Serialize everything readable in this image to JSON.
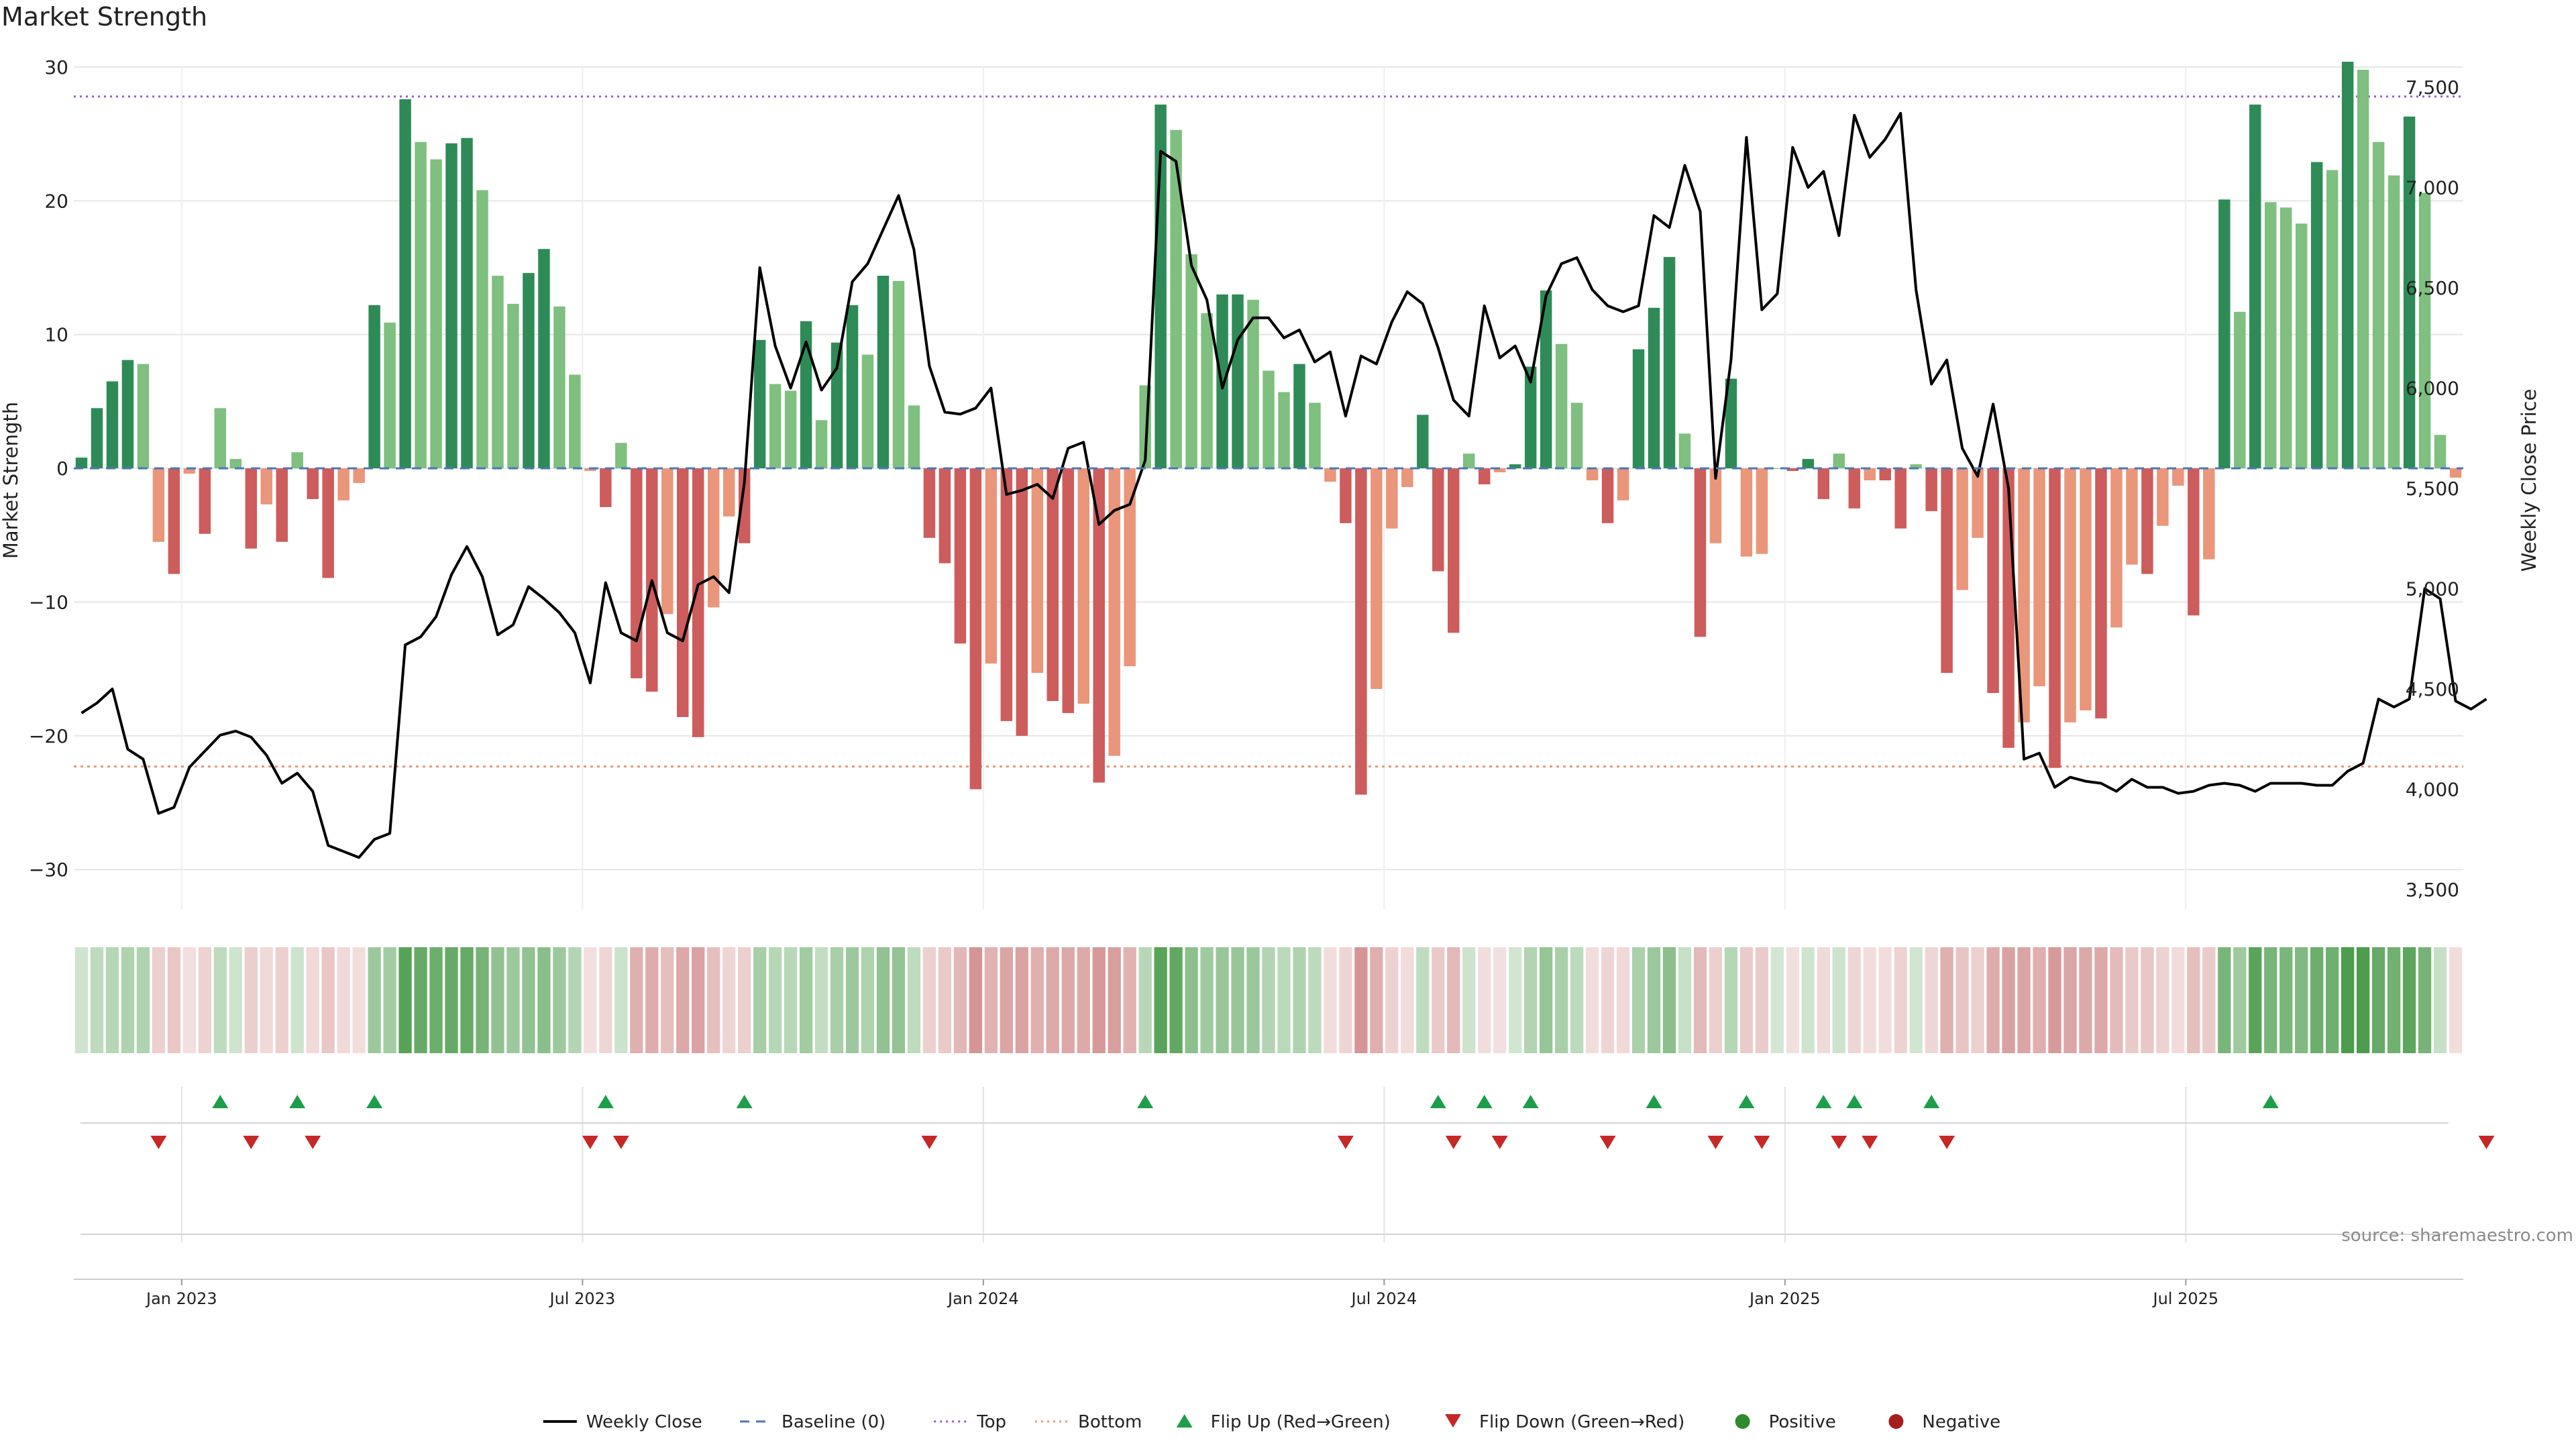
{
  "title": "Market Strength",
  "source": "source: sharemaestro.com",
  "chart_data": {
    "type": "bar",
    "title": "Market Strength",
    "ylabel_left": "Market Strength",
    "ylabel_right": "Weekly Close Price",
    "ylim_left": [
      -33,
      30
    ],
    "ylim_right": [
      3400,
      7600
    ],
    "yticks_left": [
      "30",
      "20",
      "10",
      "0",
      "−10",
      "−20",
      "−30"
    ],
    "yticks_left_values": [
      30,
      20,
      10,
      0,
      -10,
      -20,
      -30
    ],
    "yticks_right": [
      "7,500",
      "7,000",
      "6,500",
      "6,000",
      "5,500",
      "5,000",
      "4,500",
      "4,000",
      "3,500"
    ],
    "yticks_right_values": [
      7500,
      7000,
      6500,
      6000,
      5500,
      5000,
      4500,
      4000,
      3500
    ],
    "xticks": [
      "Jan 2023",
      "Jul 2023",
      "Jan 2024",
      "Jul 2024",
      "Jan 2025",
      "Jul 2025"
    ],
    "xtick_weeks": [
      7,
      33,
      59,
      85,
      111,
      137
    ],
    "top_line": 27.8,
    "bottom_line": -22.3,
    "colors": {
      "green_strong": "#2e8b57",
      "green_light": "#7fbf7f",
      "red_strong": "#cd5c5c",
      "red_light": "#e9967a",
      "close_line": "#000000",
      "baseline": "#4a78b5",
      "top": "#9b59d0",
      "bottom": "#e9967a",
      "flip_up": "#1e9e4a",
      "flip_down": "#c62828",
      "positive": "#2e8b2e",
      "negative": "#a61e1e"
    },
    "series": [
      {
        "name": "Market Strength",
        "values": [
          0.8,
          4.5,
          6.5,
          8.1,
          7.8,
          -5.5,
          -7.9,
          -0.4,
          -4.9,
          4.5,
          0.7,
          -6.0,
          -2.7,
          -5.5,
          1.2,
          -2.3,
          -8.2,
          -2.4,
          -1.1,
          12.2,
          10.9,
          27.6,
          24.4,
          23.1,
          24.3,
          24.7,
          20.8,
          14.4,
          12.3,
          14.6,
          16.4,
          12.1,
          7.0,
          -0.2,
          -2.9,
          1.9,
          -15.7,
          -16.7,
          -10.9,
          -18.6,
          -20.1,
          -10.4,
          -3.6,
          -5.6,
          9.6,
          6.3,
          5.8,
          11.0,
          3.6,
          9.4,
          12.2,
          8.5,
          14.4,
          14.0,
          4.7,
          -5.2,
          -7.1,
          -13.1,
          -24.0,
          -14.6,
          -18.9,
          -20.0,
          -15.3,
          -17.4,
          -18.3,
          -17.6,
          -23.5,
          -21.5,
          -14.8,
          6.2,
          27.2,
          25.3,
          16.0,
          11.6,
          13.0,
          13.0,
          12.6,
          7.3,
          5.7,
          7.8,
          4.9,
          -1.0,
          -4.1,
          -24.4,
          -16.5,
          -4.5,
          -1.4,
          4.0,
          -7.7,
          -12.3,
          1.1,
          -1.2,
          -0.3,
          0.3,
          7.6,
          13.3,
          9.3,
          4.9,
          -0.9,
          -4.1,
          -2.4,
          8.9,
          12.0,
          15.8,
          2.6,
          -12.6,
          -5.6,
          6.7,
          -6.6,
          -6.4,
          0.0,
          -0.2,
          0.7,
          -2.3,
          1.1,
          -3.0,
          -0.9,
          -0.9,
          -4.5,
          0.3,
          -3.2,
          -15.3,
          -9.1,
          -5.2,
          -16.8,
          -20.9,
          -19.0,
          -16.3,
          -22.4,
          -19.0,
          -18.1,
          -18.7,
          -11.9,
          -7.2,
          -7.9,
          -4.3,
          -1.3,
          -11.0,
          -6.8,
          20.1,
          11.7,
          27.2,
          19.9,
          19.5,
          18.3,
          22.9,
          22.3,
          30.4,
          29.8,
          24.4,
          21.9,
          26.3,
          20.6,
          2.5,
          -0.7
        ]
      },
      {
        "name": "Weekly Close",
        "values": [
          4380,
          4430,
          4500,
          4200,
          4150,
          3880,
          3910,
          4110,
          4190,
          4270,
          4290,
          4260,
          4170,
          4030,
          4080,
          3990,
          3720,
          3690,
          3660,
          3750,
          3780,
          4720,
          4760,
          4860,
          5070,
          5210,
          5060,
          4770,
          4820,
          5010,
          4950,
          4880,
          4780,
          4530,
          5030,
          4780,
          4740,
          5040,
          4780,
          4740,
          5020,
          5060,
          4980,
          5530,
          6600,
          6210,
          6000,
          6230,
          5990,
          6100,
          6530,
          6620,
          6790,
          6960,
          6690,
          6110,
          5880,
          5870,
          5900,
          6000,
          5470,
          5490,
          5520,
          5450,
          5700,
          5730,
          5320,
          5390,
          5420,
          5640,
          7180,
          7130,
          6610,
          6440,
          6000,
          6240,
          6350,
          6350,
          6250,
          6290,
          6130,
          6180,
          5860,
          6160,
          6120,
          6330,
          6480,
          6420,
          6200,
          5940,
          5860,
          6410,
          6150,
          6210,
          6030,
          6460,
          6620,
          6650,
          6490,
          6410,
          6380,
          6410,
          6860,
          6800,
          7110,
          6880,
          5550,
          6140,
          7250,
          6390,
          6470,
          7200,
          7000,
          7080,
          6760,
          7360,
          7150,
          7240,
          7370,
          6490,
          6020,
          6140,
          5700,
          5560,
          5920,
          5500,
          4150,
          4180,
          4010,
          4060,
          4040,
          4030,
          3990,
          4050,
          4010,
          4010,
          3980,
          3990,
          4020,
          4030,
          4020,
          3990,
          4030,
          4030,
          4030,
          4020,
          4020,
          4090,
          4130,
          4450,
          4410,
          4450,
          5000,
          4950,
          4440,
          4400,
          4450
        ]
      }
    ],
    "strength_strip": [
      {
        "label": "Positive",
        "color": "#2e8b2e"
      },
      {
        "label": "Negative",
        "color": "#a61e1e"
      }
    ],
    "flip_up_weeks": [
      9,
      14,
      19,
      34,
      43,
      69,
      88,
      91,
      94,
      102,
      108,
      113,
      115,
      120,
      142
    ],
    "flip_down_weeks": [
      5,
      11,
      15,
      33,
      35,
      55,
      82,
      89,
      92,
      99,
      106,
      109,
      114,
      116,
      121,
      156
    ],
    "legend": [
      {
        "label": "Weekly Close",
        "kind": "line",
        "color": "#000000"
      },
      {
        "label": "Baseline (0)",
        "kind": "dashed",
        "color": "#4a78b5"
      },
      {
        "label": "Top",
        "kind": "dotted",
        "color": "#9b59d0"
      },
      {
        "label": "Bottom",
        "kind": "dotted",
        "color": "#e9967a"
      },
      {
        "label": "Flip Up (Red→Green)",
        "kind": "tri-up",
        "color": "#1e9e4a"
      },
      {
        "label": "Flip Down (Green→Red)",
        "kind": "tri-down",
        "color": "#c62828"
      },
      {
        "label": "Positive",
        "kind": "dot",
        "color": "#2e8b2e"
      },
      {
        "label": "Negative",
        "kind": "dot",
        "color": "#a61e1e"
      }
    ]
  }
}
